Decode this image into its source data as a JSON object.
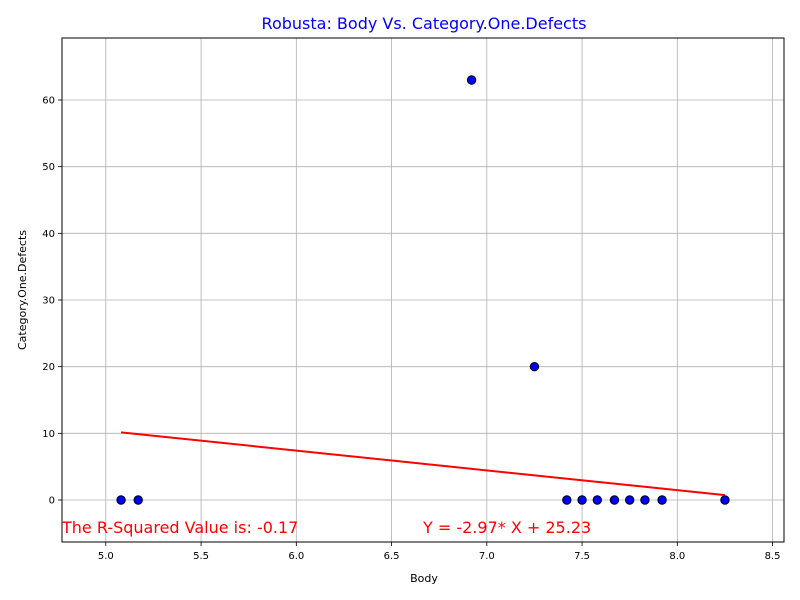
{
  "chart_data": {
    "type": "scatter",
    "title": "Robusta: Body Vs. Category.One.Defects",
    "xlabel": "Body",
    "ylabel": "Category.One.Defects",
    "xlim": [
      4.77,
      8.56
    ],
    "ylim": [
      -6.3,
      69.3
    ],
    "x_ticks": [
      "5.0",
      "5.5",
      "6.0",
      "6.5",
      "7.0",
      "7.5",
      "8.0",
      "8.5"
    ],
    "y_ticks": [
      "0",
      "10",
      "20",
      "30",
      "40",
      "50",
      "60"
    ],
    "grid": true,
    "points": [
      {
        "x": 5.08,
        "y": 0
      },
      {
        "x": 5.17,
        "y": 0
      },
      {
        "x": 6.92,
        "y": 63
      },
      {
        "x": 7.25,
        "y": 20
      },
      {
        "x": 7.42,
        "y": 0
      },
      {
        "x": 7.5,
        "y": 0
      },
      {
        "x": 7.58,
        "y": 0
      },
      {
        "x": 7.67,
        "y": 0
      },
      {
        "x": 7.75,
        "y": 0
      },
      {
        "x": 7.83,
        "y": 0
      },
      {
        "x": 7.92,
        "y": 0
      },
      {
        "x": 8.25,
        "y": 0
      }
    ],
    "regression": {
      "slope": -2.97,
      "intercept": 25.23,
      "x_range": [
        5.08,
        8.25
      ]
    },
    "annotations": {
      "r_squared": "The R-Squared Value is: -0.17",
      "equation": "Y = -2.97* X + 25.23"
    },
    "colors": {
      "title": "#0000ff",
      "marker_fill": "#0000ff",
      "marker_edge": "#000000",
      "regression_line": "#ff0000",
      "annotation": "#ff0000",
      "grid": "#b0b0b0"
    }
  }
}
